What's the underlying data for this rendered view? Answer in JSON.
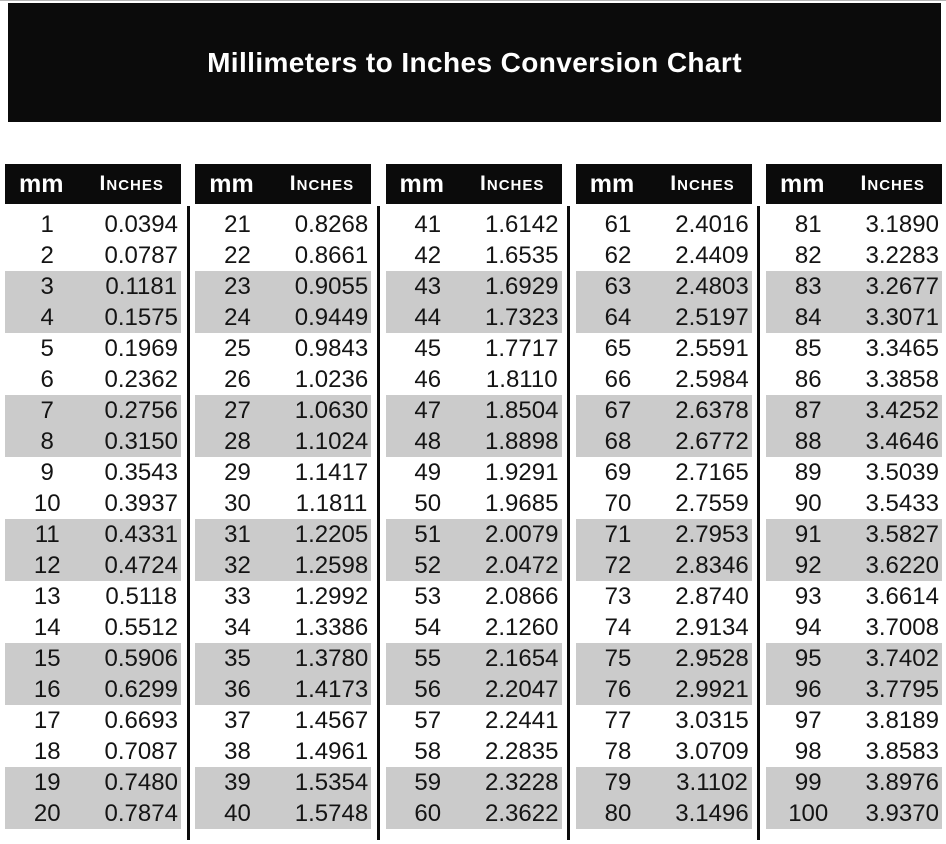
{
  "title": "Millimeters to Inches Conversion Chart",
  "colors": {
    "ink": "#0b0b0b",
    "banner_text": "#ffffff",
    "row_alt_bg": "#cbcbcb",
    "body_text": "#141414"
  },
  "table": {
    "header": {
      "mm": "mm",
      "inches": "Inches"
    },
    "groups": [
      {
        "rows": [
          [
            "1",
            "0.0394"
          ],
          [
            "2",
            "0.0787"
          ],
          [
            "3",
            "0.1181"
          ],
          [
            "4",
            "0.1575"
          ],
          [
            "5",
            "0.1969"
          ],
          [
            "6",
            "0.2362"
          ],
          [
            "7",
            "0.2756"
          ],
          [
            "8",
            "0.3150"
          ],
          [
            "9",
            "0.3543"
          ],
          [
            "10",
            "0.3937"
          ],
          [
            "11",
            "0.4331"
          ],
          [
            "12",
            "0.4724"
          ],
          [
            "13",
            "0.5118"
          ],
          [
            "14",
            "0.5512"
          ],
          [
            "15",
            "0.5906"
          ],
          [
            "16",
            "0.6299"
          ],
          [
            "17",
            "0.6693"
          ],
          [
            "18",
            "0.7087"
          ],
          [
            "19",
            "0.7480"
          ],
          [
            "20",
            "0.7874"
          ]
        ]
      },
      {
        "rows": [
          [
            "21",
            "0.8268"
          ],
          [
            "22",
            "0.8661"
          ],
          [
            "23",
            "0.9055"
          ],
          [
            "24",
            "0.9449"
          ],
          [
            "25",
            "0.9843"
          ],
          [
            "26",
            "1.0236"
          ],
          [
            "27",
            "1.0630"
          ],
          [
            "28",
            "1.1024"
          ],
          [
            "29",
            "1.1417"
          ],
          [
            "30",
            "1.1811"
          ],
          [
            "31",
            "1.2205"
          ],
          [
            "32",
            "1.2598"
          ],
          [
            "33",
            "1.2992"
          ],
          [
            "34",
            "1.3386"
          ],
          [
            "35",
            "1.3780"
          ],
          [
            "36",
            "1.4173"
          ],
          [
            "37",
            "1.4567"
          ],
          [
            "38",
            "1.4961"
          ],
          [
            "39",
            "1.5354"
          ],
          [
            "40",
            "1.5748"
          ]
        ]
      },
      {
        "rows": [
          [
            "41",
            "1.6142"
          ],
          [
            "42",
            "1.6535"
          ],
          [
            "43",
            "1.6929"
          ],
          [
            "44",
            "1.7323"
          ],
          [
            "45",
            "1.7717"
          ],
          [
            "46",
            "1.8110"
          ],
          [
            "47",
            "1.8504"
          ],
          [
            "48",
            "1.8898"
          ],
          [
            "49",
            "1.9291"
          ],
          [
            "50",
            "1.9685"
          ],
          [
            "51",
            "2.0079"
          ],
          [
            "52",
            "2.0472"
          ],
          [
            "53",
            "2.0866"
          ],
          [
            "54",
            "2.1260"
          ],
          [
            "55",
            "2.1654"
          ],
          [
            "56",
            "2.2047"
          ],
          [
            "57",
            "2.2441"
          ],
          [
            "58",
            "2.2835"
          ],
          [
            "59",
            "2.3228"
          ],
          [
            "60",
            "2.3622"
          ]
        ]
      },
      {
        "rows": [
          [
            "61",
            "2.4016"
          ],
          [
            "62",
            "2.4409"
          ],
          [
            "63",
            "2.4803"
          ],
          [
            "64",
            "2.5197"
          ],
          [
            "65",
            "2.5591"
          ],
          [
            "66",
            "2.5984"
          ],
          [
            "67",
            "2.6378"
          ],
          [
            "68",
            "2.6772"
          ],
          [
            "69",
            "2.7165"
          ],
          [
            "70",
            "2.7559"
          ],
          [
            "71",
            "2.7953"
          ],
          [
            "72",
            "2.8346"
          ],
          [
            "73",
            "2.8740"
          ],
          [
            "74",
            "2.9134"
          ],
          [
            "75",
            "2.9528"
          ],
          [
            "76",
            "2.9921"
          ],
          [
            "77",
            "3.0315"
          ],
          [
            "78",
            "3.0709"
          ],
          [
            "79",
            "3.1102"
          ],
          [
            "80",
            "3.1496"
          ]
        ]
      },
      {
        "rows": [
          [
            "81",
            "3.1890"
          ],
          [
            "82",
            "3.2283"
          ],
          [
            "83",
            "3.2677"
          ],
          [
            "84",
            "3.3071"
          ],
          [
            "85",
            "3.3465"
          ],
          [
            "86",
            "3.3858"
          ],
          [
            "87",
            "3.4252"
          ],
          [
            "88",
            "3.4646"
          ],
          [
            "89",
            "3.5039"
          ],
          [
            "90",
            "3.5433"
          ],
          [
            "91",
            "3.5827"
          ],
          [
            "92",
            "3.6220"
          ],
          [
            "93",
            "3.6614"
          ],
          [
            "94",
            "3.7008"
          ],
          [
            "95",
            "3.7402"
          ],
          [
            "96",
            "3.7795"
          ],
          [
            "97",
            "3.8189"
          ],
          [
            "98",
            "3.8583"
          ],
          [
            "99",
            "3.8976"
          ],
          [
            "100",
            "3.9370"
          ]
        ]
      }
    ]
  }
}
